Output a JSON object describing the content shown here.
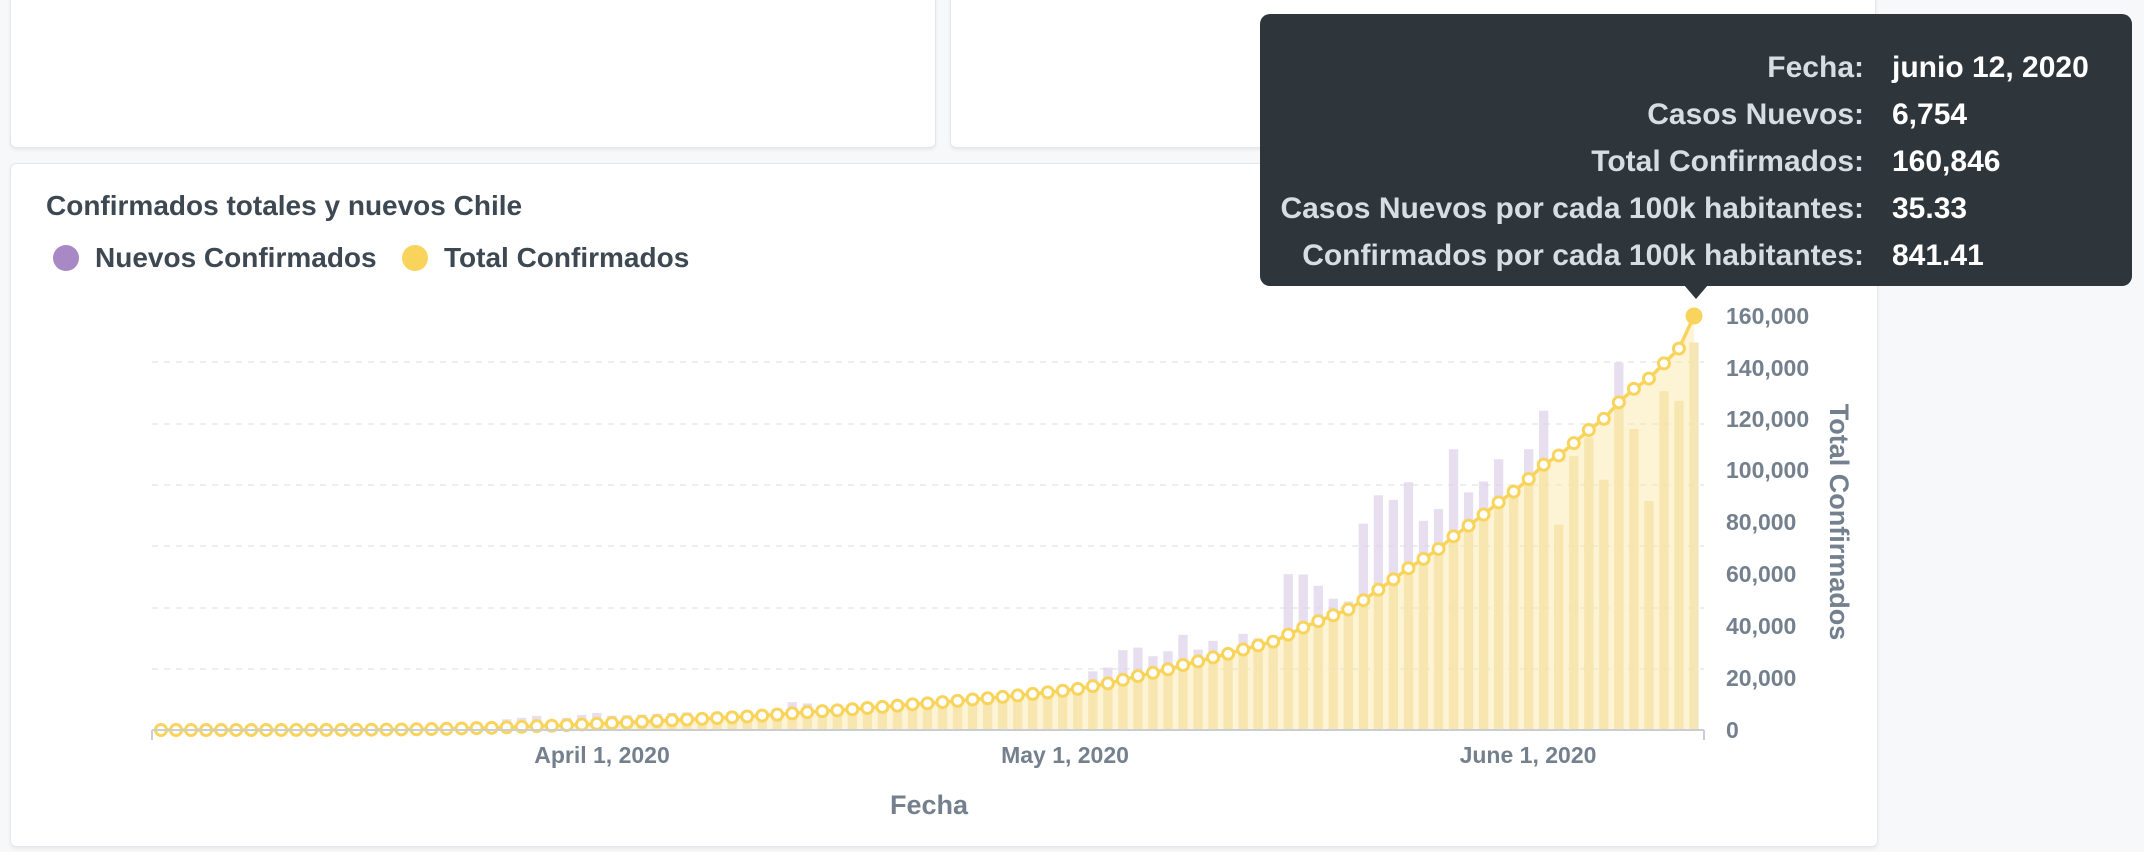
{
  "chart_title": "Confirmados totales y nuevos Chile",
  "legend": [
    {
      "label": "Nuevos Confirmados",
      "color": "#a989c5"
    },
    {
      "label": "Total Confirmados",
      "color": "#f9d45c"
    }
  ],
  "tooltip": {
    "rows": [
      {
        "key": "Fecha:",
        "value": "junio 12, 2020"
      },
      {
        "key": "Casos Nuevos:",
        "value": "6,754"
      },
      {
        "key": "Total Confirmados:",
        "value": "160,846"
      },
      {
        "key": "Casos Nuevos por cada 100k habitantes:",
        "value": "35.33"
      },
      {
        "key": "Confirmados por cada 100k habitantes:",
        "value": "841.41"
      }
    ]
  },
  "chart_data": {
    "type": "bar+line",
    "title": "Confirmados totales y nuevos Chile",
    "xlabel": "Fecha",
    "ylabel": "Total Confirmados",
    "x_tick_labels": [
      "April 1, 2020",
      "May 1, 2020",
      "June 1, 2020"
    ],
    "y_ticks": [
      0,
      20000,
      40000,
      60000,
      80000,
      100000,
      120000,
      140000,
      160000
    ],
    "y_tick_labels": [
      "0",
      "20,000",
      "40,000",
      "60,000",
      "80,000",
      "100,000",
      "120,000",
      "140,000",
      "160,000"
    ],
    "ylim": [
      0,
      160846
    ],
    "x_range": [
      "2020-03-03",
      "2020-06-12"
    ],
    "grid": true,
    "legend_position": "top-left",
    "series": [
      {
        "name": "Nuevos Confirmados",
        "kind": "bar",
        "color": "#a989c5",
        "scale_max": 6938,
        "values": [
          1,
          0,
          2,
          1,
          0,
          1,
          3,
          4,
          5,
          10,
          10,
          14,
          14,
          19,
          31,
          46,
          49,
          72,
          92,
          99,
          120,
          138,
          115,
          187,
          213,
          245,
          157,
          212,
          263,
          298,
          249,
          258,
          268,
          283,
          296,
          306,
          263,
          286,
          294,
          330,
          347,
          374,
          486,
          463,
          393,
          321,
          443,
          473,
          417,
          473,
          531,
          382,
          489,
          486,
          528,
          468,
          535,
          568,
          580,
          607,
          637,
          745,
          1023,
          1088,
          1391,
          1436,
          1286,
          1373,
          1658,
          1401,
          1554,
          1385,
          1676,
          1593,
          1495,
          2716,
          2711,
          2513,
          2288,
          2241,
          3597,
          4091,
          4012,
          4318,
          3647,
          3851,
          4895,
          4142,
          4331,
          4721,
          4186,
          4895,
          5565,
          3580,
          4774,
          5098,
          4362,
          6405,
          5246,
          3992,
          5904,
          5737,
          6754
        ]
      },
      {
        "name": "Total Confirmados",
        "kind": "line",
        "color": "#f9d45c",
        "values": [
          1,
          1,
          3,
          4,
          4,
          5,
          8,
          12,
          17,
          27,
          37,
          51,
          65,
          84,
          115,
          161,
          210,
          282,
          374,
          473,
          593,
          731,
          846,
          1033,
          1246,
          1491,
          1648,
          1860,
          2123,
          2421,
          2670,
          2928,
          3196,
          3479,
          3775,
          4081,
          4344,
          4630,
          4924,
          5254,
          5601,
          5975,
          6461,
          6924,
          7317,
          7638,
          8081,
          8554,
          8971,
          9444,
          9975,
          10357,
          10846,
          11332,
          11860,
          12328,
          12863,
          13431,
          14011,
          14618,
          15255,
          16000,
          17023,
          18111,
          19502,
          20938,
          22224,
          23597,
          25255,
          26656,
          28210,
          29595,
          31271,
          32864,
          34359,
          37075,
          39786,
          42299,
          44587,
          46828,
          50425,
          54516,
          58528,
          62846,
          66493,
          70344,
          75239,
          79381,
          83712,
          88433,
          92619,
          97514,
          103079,
          106659,
          111433,
          116531,
          120893,
          127298,
          132544,
          136536,
          142440,
          148177,
          160846
        ]
      }
    ]
  }
}
